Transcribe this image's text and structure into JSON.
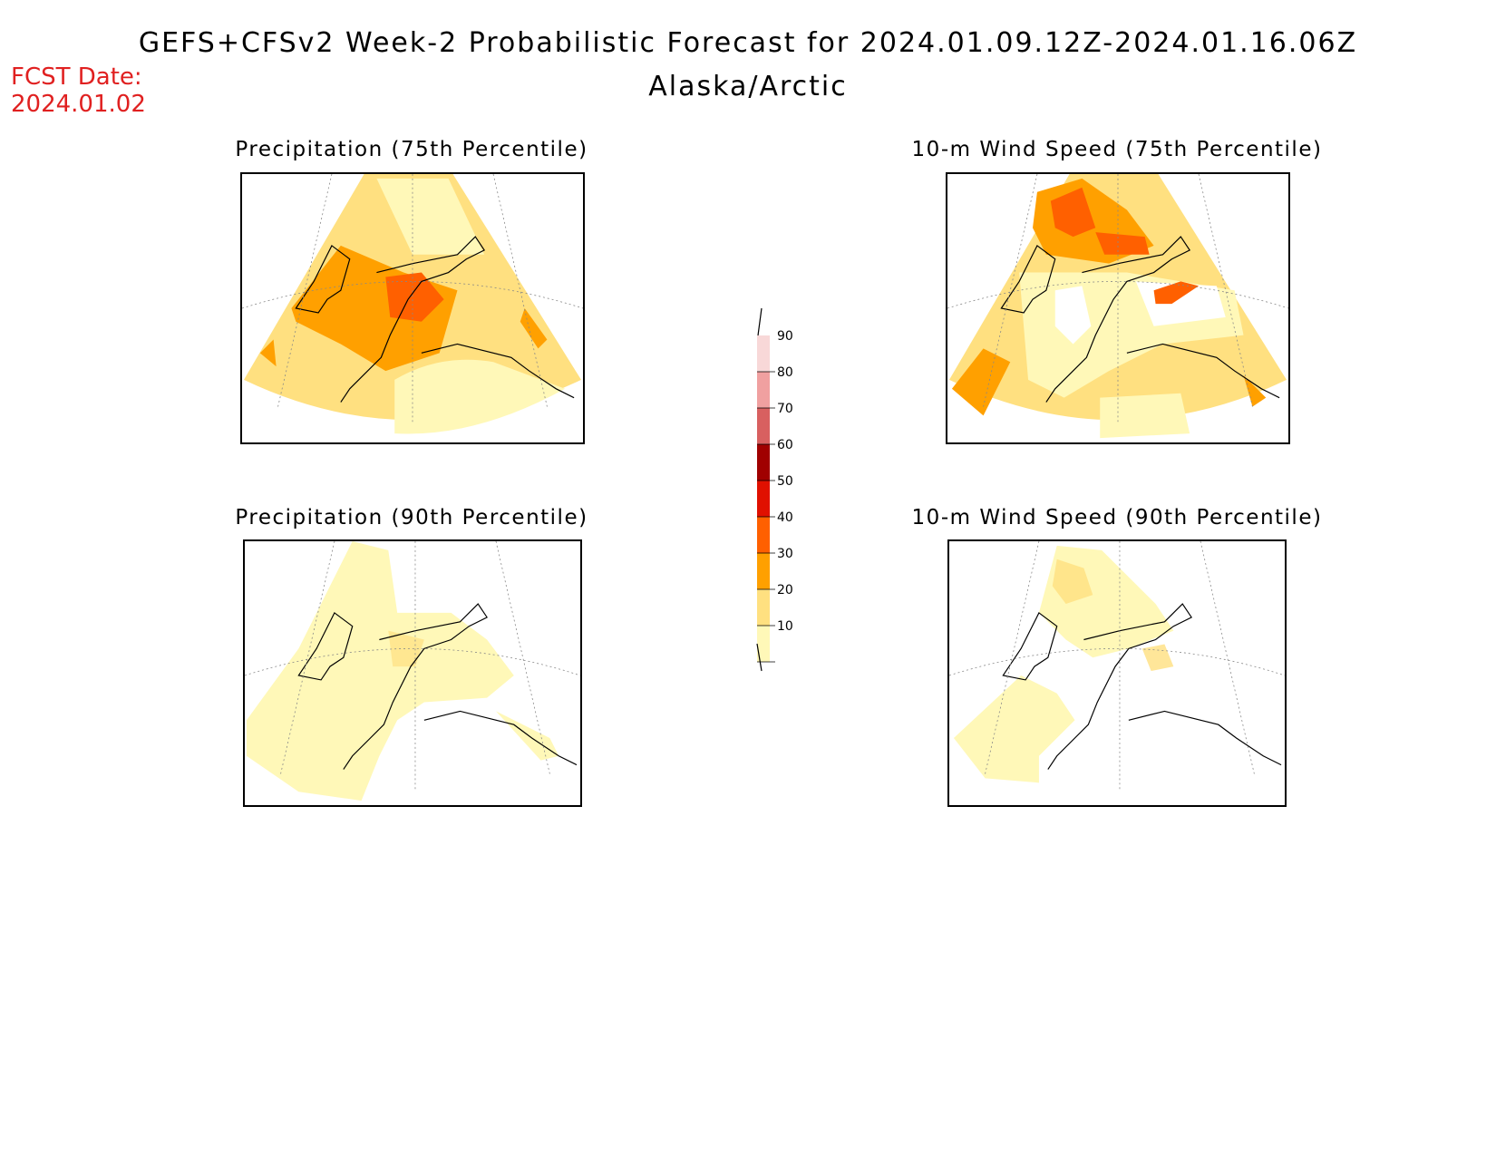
{
  "header": {
    "title": "GEFS+CFSv2 Week-2 Probabilistic Forecast for 2024.01.09.12Z-2024.01.16.06Z",
    "subtitle": "Alaska/Arctic",
    "fcst_date_label": "FCST Date:",
    "fcst_date_value": "2024.01.02"
  },
  "panels": [
    {
      "id": "precip-75",
      "title": "Precipitation (75th Percentile)"
    },
    {
      "id": "wind-75",
      "title": "10-m Wind Speed (75th Percentile)"
    },
    {
      "id": "precip-90",
      "title": "Precipitation (90th Percentile)"
    },
    {
      "id": "wind-90",
      "title": "10-m Wind Speed (90th Percentile)"
    }
  ],
  "colorbar": {
    "levels": [
      {
        "value": "90",
        "color": "#f8d8d8"
      },
      {
        "value": "80",
        "color": "#f0a0a0"
      },
      {
        "value": "70",
        "color": "#d86060"
      },
      {
        "value": "60",
        "color": "#a00000"
      },
      {
        "value": "50",
        "color": "#e01000"
      },
      {
        "value": "40",
        "color": "#ff6000"
      },
      {
        "value": "30",
        "color": "#ffa000"
      },
      {
        "value": "20",
        "color": "#ffe080"
      },
      {
        "value": "10",
        "color": "#fff8b8"
      }
    ]
  },
  "palette": {
    "lvl10": "#fff8b8",
    "lvl20": "#ffe080",
    "lvl30": "#ffa000",
    "lvl40": "#ff6000",
    "coast": "#000000"
  }
}
